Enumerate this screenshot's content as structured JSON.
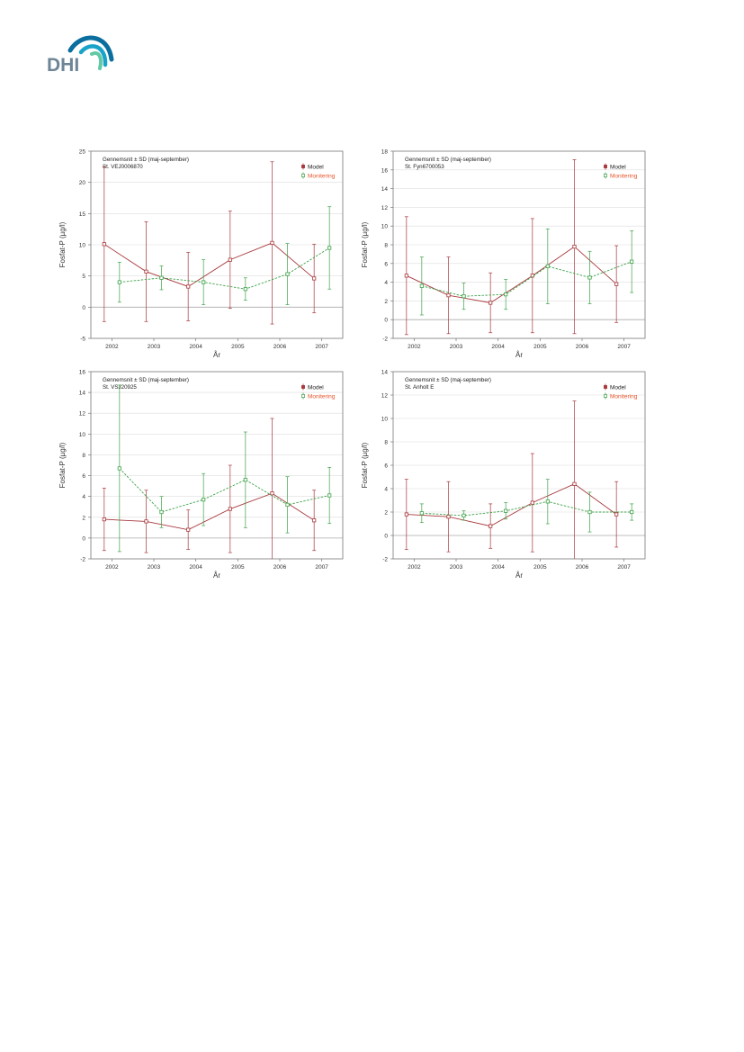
{
  "logo": {
    "text": "DHI",
    "colors": {
      "letters": "#6d8596",
      "wave_dark": "#0a6e9e",
      "wave_mid": "#1aa3c9",
      "wave_light": "#63c9a5"
    }
  },
  "colors": {
    "model": "#a8393d",
    "monitoring": "#3fa24a",
    "monitoring_label": "#e8542a",
    "grid": "#dddddd",
    "frame": "#777777"
  },
  "chart_data": [
    {
      "type": "line",
      "subtitle": "Gennemsnit ± SD (maj-september)",
      "station": "St. VEJ0006870",
      "xlabel": "År",
      "ylabel": "Fosfat-P (µg/l)",
      "ylim": [
        -5,
        25
      ],
      "yticks": [
        -5,
        0,
        5,
        10,
        15,
        20,
        25
      ],
      "x": [
        "2002",
        "2003",
        "2004",
        "2005",
        "2006",
        "2007"
      ],
      "legend_position": "top-right",
      "grid": true,
      "series": [
        {
          "name": "Model",
          "mean": [
            10.1,
            5.7,
            3.3,
            7.6,
            10.3,
            4.6
          ],
          "sd": [
            12.4,
            8.0,
            5.5,
            7.8,
            13.0,
            5.5
          ]
        },
        {
          "name": "Monitering",
          "mean": [
            4.0,
            4.7,
            4.0,
            2.9,
            5.3,
            9.5
          ],
          "sd": [
            3.2,
            1.9,
            3.6,
            1.8,
            4.9,
            6.6
          ]
        }
      ]
    },
    {
      "type": "line",
      "subtitle": "Gennemsnit ± SD (maj-september)",
      "station": "St. Fyn6700053",
      "xlabel": "År",
      "ylabel": "Fosfat-P (µg/l)",
      "ylim": [
        -2,
        18
      ],
      "yticks": [
        -2,
        0,
        2,
        4,
        6,
        8,
        10,
        12,
        14,
        16,
        18
      ],
      "x": [
        "2002",
        "2003",
        "2004",
        "2005",
        "2006",
        "2007"
      ],
      "legend_position": "top-right",
      "grid": true,
      "series": [
        {
          "name": "Model",
          "mean": [
            4.7,
            2.6,
            1.8,
            4.7,
            7.8,
            3.8
          ],
          "sd": [
            6.3,
            4.1,
            3.2,
            6.1,
            9.3,
            4.1
          ]
        },
        {
          "name": "Monitering",
          "mean": [
            3.6,
            2.5,
            2.7,
            5.7,
            4.5,
            6.2
          ],
          "sd": [
            3.1,
            1.4,
            1.6,
            4.0,
            2.8,
            3.3
          ]
        }
      ]
    },
    {
      "type": "line",
      "subtitle": "Gennemsnit ± SD (maj-september)",
      "station": "St. VSJ20925",
      "xlabel": "År",
      "ylabel": "Fosfat-P (µg/l)",
      "ylim": [
        -2,
        16
      ],
      "yticks": [
        -2,
        0,
        2,
        4,
        6,
        8,
        10,
        12,
        14,
        16
      ],
      "x": [
        "2002",
        "2003",
        "2004",
        "2005",
        "2006",
        "2007"
      ],
      "legend_position": "top-right",
      "grid": true,
      "series": [
        {
          "name": "Model",
          "mean": [
            1.8,
            1.6,
            0.8,
            2.8,
            4.3,
            1.7
          ],
          "sd": [
            3.0,
            3.0,
            1.9,
            4.2,
            7.2,
            2.9
          ]
        },
        {
          "name": "Monitering",
          "mean": [
            6.7,
            2.5,
            3.7,
            5.6,
            3.2,
            4.1
          ],
          "sd": [
            8.0,
            1.5,
            2.5,
            4.6,
            2.7,
            2.7
          ]
        }
      ]
    },
    {
      "type": "line",
      "subtitle": "Gennemsnit ± SD (maj-september)",
      "station": "St. Anholt E",
      "xlabel": "År",
      "ylabel": "Fosfat-P (µg/l)",
      "ylim": [
        -2,
        14
      ],
      "yticks": [
        -2,
        0,
        2,
        4,
        6,
        8,
        10,
        12,
        14
      ],
      "x": [
        "2002",
        "2003",
        "2004",
        "2005",
        "2006",
        "2007"
      ],
      "legend_position": "top-right",
      "grid": true,
      "series": [
        {
          "name": "Model",
          "mean": [
            1.8,
            1.6,
            0.8,
            2.8,
            4.4,
            1.8
          ],
          "sd": [
            3.0,
            3.0,
            1.9,
            4.2,
            7.1,
            2.8
          ]
        },
        {
          "name": "Monitering",
          "mean": [
            1.9,
            1.7,
            2.1,
            2.9,
            2.0,
            2.0
          ],
          "sd": [
            0.8,
            0.4,
            0.7,
            1.9,
            1.7,
            0.7
          ]
        }
      ]
    }
  ]
}
